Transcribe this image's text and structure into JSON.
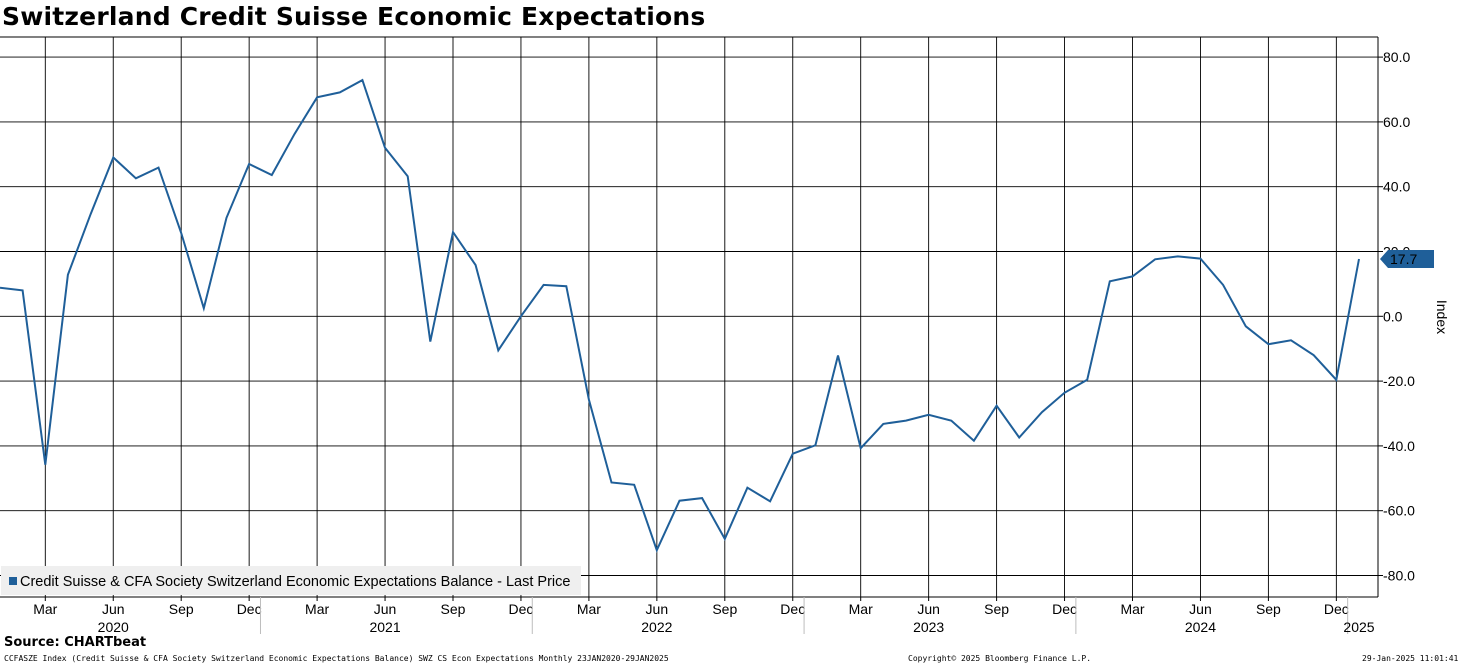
{
  "chart_data": {
    "type": "line",
    "title": "Switzerland Credit Suisse Economic Expectations",
    "ylabel": "Index",
    "xlabel": "",
    "ylim": [
      -80,
      80
    ],
    "y_ticks": [
      80,
      60,
      40,
      20,
      0,
      -20,
      -40,
      -60,
      -80
    ],
    "y_tick_labels": [
      "80.0",
      "60.0",
      "40.0",
      "20.0",
      "0.0",
      "-20.0",
      "-40.0",
      "-60.0",
      "-80.0"
    ],
    "grid": true,
    "x_start": "2020-01",
    "x_end": "2025-01",
    "month_ticks": [
      {
        "m": 2,
        "label": "Mar"
      },
      {
        "m": 5,
        "label": "Jun"
      },
      {
        "m": 8,
        "label": "Sep"
      },
      {
        "m": 11,
        "label": "Dec"
      },
      {
        "m": 14,
        "label": "Mar"
      },
      {
        "m": 17,
        "label": "Jun"
      },
      {
        "m": 20,
        "label": "Sep"
      },
      {
        "m": 23,
        "label": "Dec"
      },
      {
        "m": 26,
        "label": "Mar"
      },
      {
        "m": 29,
        "label": "Jun"
      },
      {
        "m": 32,
        "label": "Sep"
      },
      {
        "m": 35,
        "label": "Dec"
      },
      {
        "m": 38,
        "label": "Mar"
      },
      {
        "m": 41,
        "label": "Jun"
      },
      {
        "m": 44,
        "label": "Sep"
      },
      {
        "m": 47,
        "label": "Dec"
      },
      {
        "m": 50,
        "label": "Mar"
      },
      {
        "m": 53,
        "label": "Jun"
      },
      {
        "m": 56,
        "label": "Sep"
      },
      {
        "m": 59,
        "label": "Dec"
      }
    ],
    "year_labels": [
      {
        "m": 5,
        "label": "2020"
      },
      {
        "m": 17,
        "label": "2021"
      },
      {
        "m": 29,
        "label": "2022"
      },
      {
        "m": 41,
        "label": "2023"
      },
      {
        "m": 53,
        "label": "2024"
      },
      {
        "m": 60,
        "label": "2025"
      }
    ],
    "year_separators": [
      11.5,
      23.5,
      35.5,
      47.5,
      59.5
    ],
    "series": [
      {
        "name": "Credit Suisse & CFA Society Switzerland Economic Expectations Balance - Last Price",
        "color": "#1f5f99",
        "values": [
          8.8,
          8.0,
          -45.8,
          12.8,
          31.5,
          49.0,
          42.6,
          45.9,
          25.7,
          2.5,
          30.4,
          47.0,
          43.6,
          56.2,
          67.6,
          69.1,
          72.9,
          52.0,
          43.2,
          -7.8,
          26.0,
          15.8,
          -10.5,
          0.0,
          9.7,
          9.3,
          -25.7,
          -51.3,
          -52.0,
          -72.2,
          -56.9,
          -56.1,
          -68.7,
          -52.9,
          -57.1,
          -42.4,
          -39.8,
          -12.1,
          -40.7,
          -33.2,
          -32.2,
          -30.4,
          -32.2,
          -38.4,
          -27.6,
          -37.4,
          -29.6,
          -23.6,
          -19.6,
          10.8,
          12.3,
          17.6,
          18.5,
          17.8,
          9.7,
          -3.1,
          -8.6,
          -7.4,
          -12.0,
          -19.6,
          17.7
        ]
      }
    ],
    "last_value_label": "17.7",
    "legend": {
      "label": "Credit Suisse & CFA Society Switzerland Economic Expectations Balance - Last Price",
      "position": "bottom-left"
    }
  },
  "source": "Source: CHARTbeat",
  "footer": {
    "left": "CCFASZE Index (Credit Suisse & CFA Society Switzerland Economic Expectations Balance) SWZ CS Econ Expectations  Monthly 23JAN2020-29JAN2025",
    "center": "Copyright© 2025 Bloomberg Finance L.P.",
    "right": "29-Jan-2025 11:01:41"
  },
  "colors": {
    "line": "#1f5f99",
    "grid": "#000000",
    "legend_bg": "#efefef",
    "label_bg": "#1f5f99"
  }
}
